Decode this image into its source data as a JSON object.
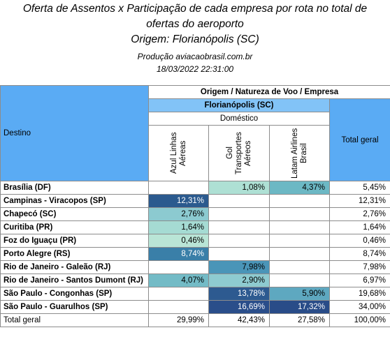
{
  "header": {
    "title": [
      "Oferta de Assentos x Participação de cada empresa por rota no total de",
      "ofertas do aeroporto"
    ],
    "origin": "Origem: Florianópolis (SC)",
    "production": "Produção aviacaobrasil.com.br",
    "date": "18/03/2022 22:31:00"
  },
  "table": {
    "group": "Origem  /  Natureza de Voo  /  Empresa",
    "destination": "Destino",
    "origin": "Florianópolis (SC)",
    "nature": "Doméstico",
    "companies": [
      "Azul Linhas Aéreas",
      "Gol Transportes Aéreos",
      "Latam Airlines Brasil"
    ],
    "total": "Total geral",
    "rows": [
      [
        "Brasília (DF)",
        null,
        "1,08%",
        "4,37%",
        "5,45%"
      ],
      [
        "Campinas - Viracopos (SP)",
        "12,31%",
        null,
        null,
        "12,31%"
      ],
      [
        "Chapecó (SC)",
        "2,76%",
        null,
        null,
        "2,76%"
      ],
      [
        "Curitiba (PR)",
        "1,64%",
        null,
        null,
        "1,64%"
      ],
      [
        "Foz do Iguaçu (PR)",
        "0,46%",
        null,
        null,
        "0,46%"
      ],
      [
        "Porto Alegre (RS)",
        "8,74%",
        null,
        null,
        "8,74%"
      ],
      [
        "Rio de Janeiro - Galeão (RJ)",
        null,
        "7,98%",
        null,
        "7,98%"
      ],
      [
        "Rio de Janeiro - Santos Dumont (RJ)",
        "4,07%",
        "2,90%",
        null,
        "6,97%"
      ],
      [
        "São Paulo - Congonhas (SP)",
        null,
        "13,78%",
        "5,90%",
        "19,68%"
      ],
      [
        "São Paulo - Guarulhos (SP)",
        null,
        "16,69%",
        "17,32%",
        "34,00%"
      ]
    ],
    "total_row": [
      "Total geral",
      "29,99%",
      "42,43%",
      "27,58%",
      "100,00%"
    ]
  }
}
